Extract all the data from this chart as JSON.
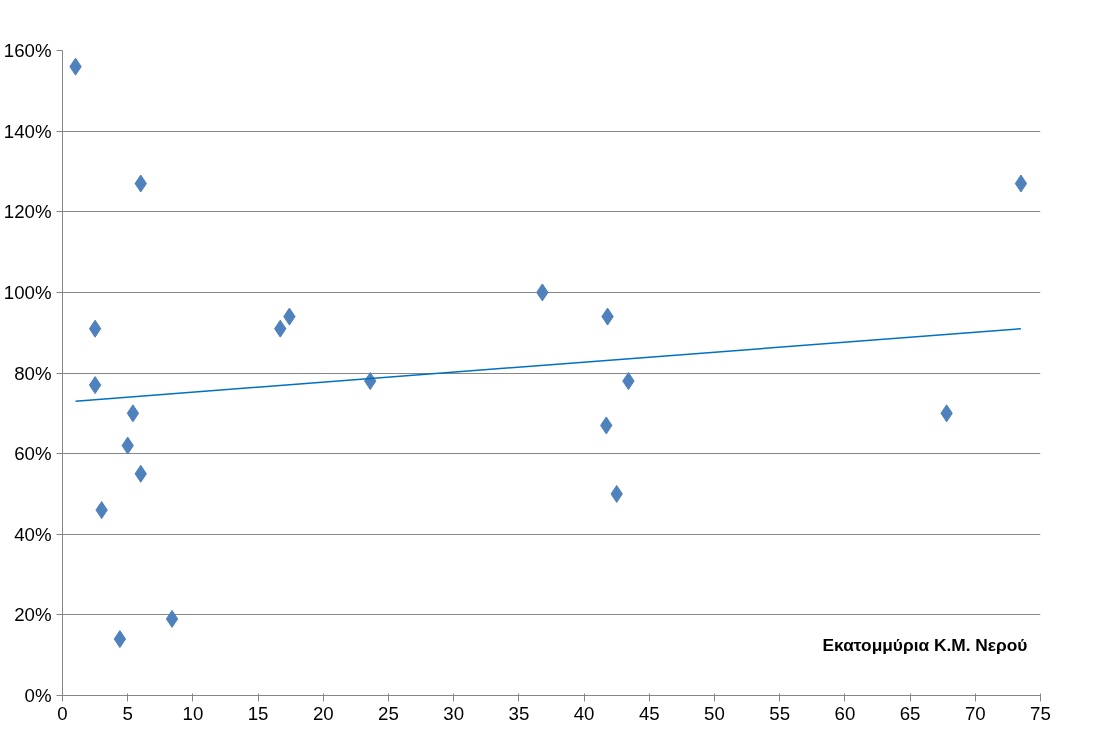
{
  "chart_data": {
    "type": "scatter",
    "grid": "y",
    "xlim": [
      0,
      75
    ],
    "xticks": [
      0,
      5,
      10,
      15,
      20,
      25,
      30,
      35,
      40,
      45,
      50,
      55,
      60,
      65,
      70,
      75
    ],
    "ylim": [
      0,
      160
    ],
    "yticks": [
      {
        "value": 0,
        "label": "0%"
      },
      {
        "value": 20,
        "label": "20%"
      },
      {
        "value": 40,
        "label": "40%"
      },
      {
        "value": 60,
        "label": "60%"
      },
      {
        "value": 80,
        "label": "80%"
      },
      {
        "value": 100,
        "label": "100%"
      },
      {
        "value": 120,
        "label": "120%"
      },
      {
        "value": 140,
        "label": "140%"
      },
      {
        "value": 160,
        "label": "160%"
      }
    ],
    "annotations": [
      "Εκατομμύρια Κ.Μ. Νερού"
    ],
    "series": [
      {
        "marker": "diamond",
        "color": "#4f81bd",
        "x": [
          1.0,
          6.0,
          2.5,
          2.5,
          5.4,
          5.0,
          6.0,
          3.0,
          4.4,
          8.4,
          16.7,
          17.4,
          23.6,
          36.8,
          41.8,
          41.7,
          42.5,
          43.4,
          67.8,
          73.5
        ],
        "values": [
          156,
          127,
          91,
          77,
          70,
          62,
          55,
          46,
          14,
          19,
          91,
          94,
          78,
          100,
          94,
          67,
          50,
          78,
          70,
          127
        ]
      },
      {
        "type": "line",
        "marker": "none",
        "color": "#0070c0",
        "x": [
          1.0,
          73.5
        ],
        "values": [
          73,
          91
        ]
      }
    ]
  }
}
